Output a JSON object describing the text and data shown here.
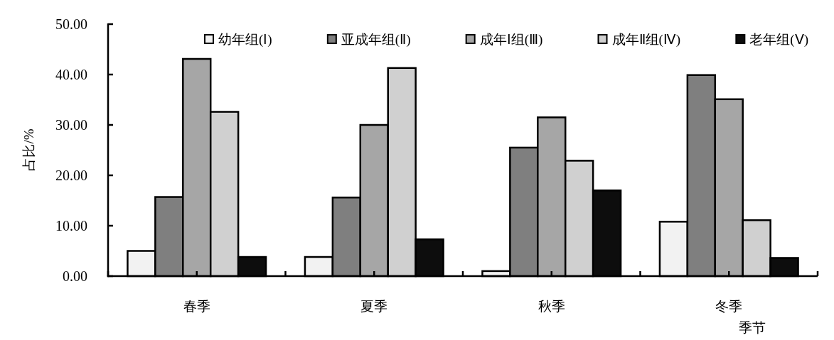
{
  "chart_data": {
    "type": "bar",
    "ylabel": "占比/%",
    "xlabel": "季节",
    "categories": [
      "春季",
      "夏季",
      "秋季",
      "冬季"
    ],
    "series": [
      {
        "name": "幼年组(Ⅰ)",
        "color": "#f2f2f2",
        "values": [
          5.0,
          3.8,
          1.0,
          10.8
        ]
      },
      {
        "name": "亚成年组(Ⅱ)",
        "color": "#7f7f7f",
        "values": [
          15.7,
          15.6,
          25.5,
          39.9
        ]
      },
      {
        "name": "成年Ⅰ组(Ⅲ)",
        "color": "#a6a6a6",
        "values": [
          43.1,
          30.0,
          31.5,
          35.1
        ]
      },
      {
        "name": "成年Ⅱ组(Ⅳ)",
        "color": "#d0d0d0",
        "values": [
          32.6,
          41.3,
          22.9,
          11.1
        ]
      },
      {
        "name": "老年组(Ⅴ)",
        "color": "#0d0d0d",
        "values": [
          3.8,
          7.3,
          17.0,
          3.6
        ]
      }
    ],
    "ylim": [
      0,
      50
    ],
    "yticks": [
      {
        "value": 0,
        "label": "0.00"
      },
      {
        "value": 10,
        "label": "10.00"
      },
      {
        "value": 20,
        "label": "20.00"
      },
      {
        "value": 30,
        "label": "30.00"
      },
      {
        "value": 40,
        "label": "40.00"
      },
      {
        "value": 50,
        "label": "50.00"
      }
    ],
    "legend": "top"
  }
}
